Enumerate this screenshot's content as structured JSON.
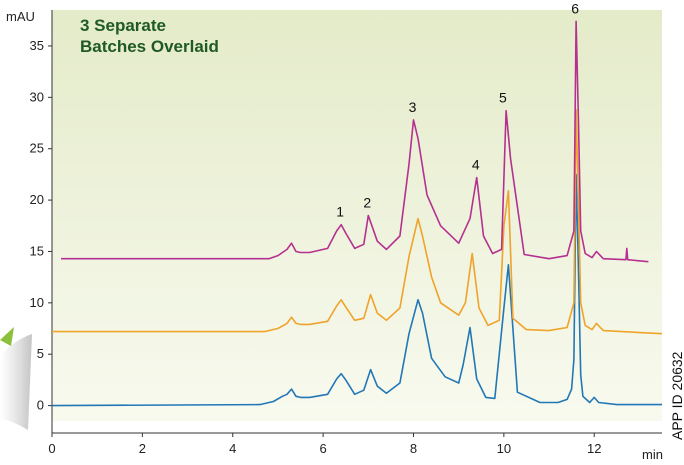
{
  "chart_data": {
    "type": "line",
    "title_lines": [
      "3 Separate",
      "Batches Overlaid"
    ],
    "ylabel": "mAU",
    "xlabel": "min",
    "xlim": [
      0,
      13.5
    ],
    "ylim": [
      -1.5,
      38.5
    ],
    "x_ticks": [
      0,
      2,
      4,
      6,
      8,
      10,
      12
    ],
    "y_ticks": [
      0,
      5,
      10,
      15,
      20,
      25,
      30,
      35
    ],
    "grid": false,
    "side_label": "APP ID 20632",
    "peaks": [
      {
        "label": "1",
        "x": 6.4,
        "y": 17.6
      },
      {
        "label": "2",
        "x": 7.0,
        "y": 18.5
      },
      {
        "label": "3",
        "x": 8.0,
        "y": 27.8
      },
      {
        "label": "4",
        "x": 9.4,
        "y": 22.2
      },
      {
        "label": "5",
        "x": 10.0,
        "y": 28.7
      },
      {
        "label": "6",
        "x": 11.6,
        "y": 37.4
      }
    ],
    "series": [
      {
        "color": "#2277b6",
        "x": [
          0.0,
          4.6,
          4.9,
          5.1,
          5.2,
          5.3,
          5.4,
          5.5,
          5.7,
          6.1,
          6.3,
          6.4,
          6.5,
          6.7,
          6.9,
          7.05,
          7.2,
          7.4,
          7.7,
          7.9,
          8.1,
          8.2,
          8.4,
          8.7,
          9.0,
          9.1,
          9.25,
          9.4,
          9.6,
          9.8,
          10.0,
          10.1,
          10.3,
          10.8,
          11.2,
          11.4,
          11.5,
          11.55,
          11.6,
          11.65,
          11.7,
          11.75,
          11.9,
          12.0,
          12.1,
          12.5,
          13.5
        ],
        "y": [
          0.0,
          0.1,
          0.4,
          0.9,
          1.1,
          1.6,
          0.9,
          0.8,
          0.8,
          1.1,
          2.6,
          3.1,
          2.5,
          1.1,
          1.5,
          3.5,
          1.9,
          1.2,
          2.2,
          7.0,
          10.3,
          9.0,
          4.6,
          2.8,
          2.2,
          4.0,
          7.6,
          2.6,
          0.8,
          0.7,
          9.5,
          13.7,
          1.3,
          0.3,
          0.3,
          0.6,
          1.6,
          4.5,
          22.5,
          13.5,
          3.0,
          0.9,
          0.3,
          0.8,
          0.3,
          0.1,
          0.1
        ]
      },
      {
        "color": "#f0a32a",
        "x": [
          0.0,
          4.7,
          5.0,
          5.2,
          5.3,
          5.4,
          5.5,
          5.7,
          6.1,
          6.3,
          6.4,
          6.5,
          6.7,
          6.9,
          7.05,
          7.2,
          7.4,
          7.7,
          7.9,
          8.1,
          8.2,
          8.4,
          8.6,
          9.0,
          9.15,
          9.3,
          9.45,
          9.65,
          9.9,
          10.0,
          10.1,
          10.2,
          10.5,
          11.0,
          11.4,
          11.55,
          11.6,
          11.65,
          11.7,
          11.8,
          11.95,
          12.05,
          12.2,
          13.5
        ],
        "y": [
          7.2,
          7.2,
          7.5,
          8.0,
          8.6,
          8.0,
          7.9,
          7.9,
          8.2,
          9.7,
          10.3,
          9.6,
          8.3,
          8.5,
          10.8,
          9.0,
          8.3,
          9.5,
          14.5,
          18.2,
          16.5,
          12.5,
          10.0,
          8.8,
          10.0,
          14.8,
          9.5,
          7.8,
          8.3,
          17.5,
          20.9,
          8.5,
          7.4,
          7.3,
          7.6,
          10.0,
          28.8,
          20.0,
          10.0,
          7.8,
          7.4,
          8.0,
          7.3,
          7.0
        ]
      },
      {
        "color": "#b5308f",
        "x": [
          0.2,
          4.8,
          5.0,
          5.2,
          5.3,
          5.4,
          5.5,
          5.7,
          6.1,
          6.3,
          6.4,
          6.5,
          6.7,
          6.9,
          7.0,
          7.2,
          7.4,
          7.7,
          7.9,
          8.0,
          8.1,
          8.3,
          8.6,
          9.0,
          9.25,
          9.4,
          9.55,
          9.75,
          9.95,
          10.05,
          10.15,
          10.45,
          11.0,
          11.4,
          11.55,
          11.6,
          11.65,
          11.7,
          11.8,
          11.95,
          12.05,
          12.2,
          12.7,
          12.72,
          12.74,
          13.2
        ],
        "y": [
          14.3,
          14.3,
          14.6,
          15.2,
          15.8,
          15.0,
          14.9,
          14.9,
          15.3,
          17.0,
          17.6,
          16.8,
          15.3,
          15.7,
          18.5,
          16.0,
          15.2,
          16.5,
          23.5,
          27.8,
          26.0,
          20.5,
          17.5,
          15.8,
          18.2,
          22.2,
          16.5,
          14.8,
          15.2,
          28.7,
          24.0,
          14.7,
          14.3,
          14.6,
          17.0,
          37.4,
          28.0,
          17.0,
          14.8,
          14.4,
          15.0,
          14.3,
          14.2,
          15.3,
          14.2,
          14.0
        ]
      }
    ]
  }
}
